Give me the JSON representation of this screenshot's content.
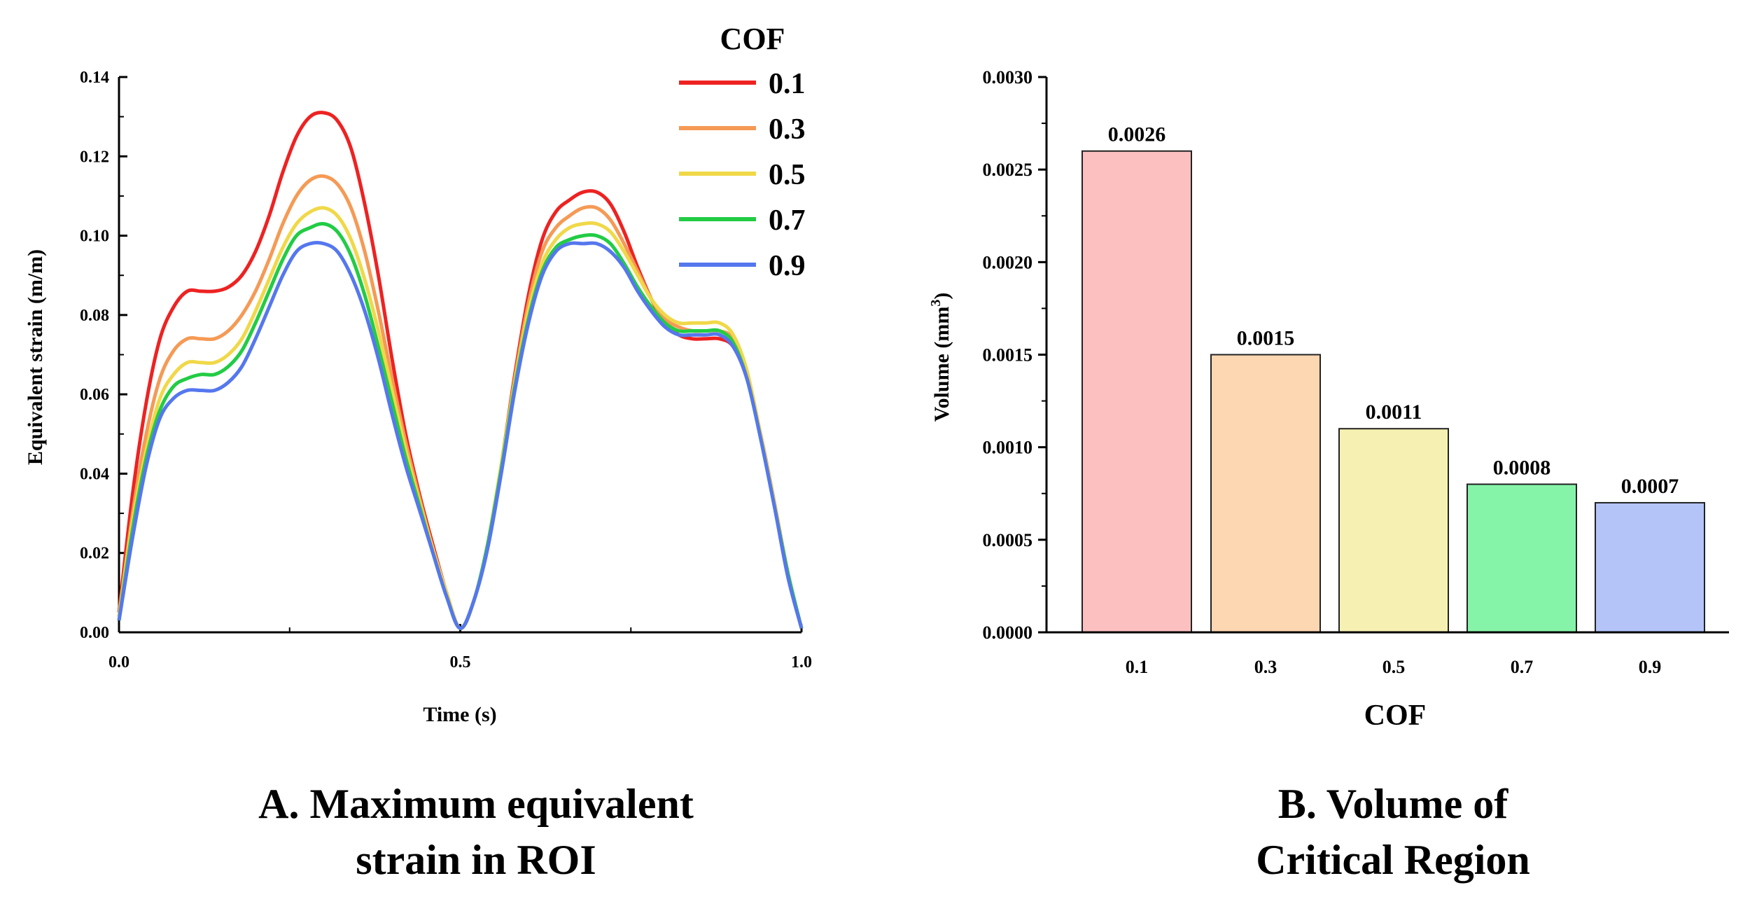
{
  "chart_data": [
    {
      "type": "line",
      "caption": [
        "A. Maximum equivalent",
        "strain in ROI"
      ],
      "xlabel": "Time (s)",
      "ylabel": "Equivalent strain (m/m)",
      "xlim": [
        0,
        1
      ],
      "ylim": [
        0,
        0.14
      ],
      "xticks": [
        "0.0",
        "0.5",
        "1.0"
      ],
      "yticks": [
        "0.00",
        "0.02",
        "0.04",
        "0.06",
        "0.08",
        "0.10",
        "0.12",
        "0.14"
      ],
      "legend_title": "COF",
      "legend_position": "top-right",
      "x": [
        0,
        0.02,
        0.04,
        0.06,
        0.08,
        0.1,
        0.12,
        0.14,
        0.16,
        0.18,
        0.2,
        0.22,
        0.24,
        0.26,
        0.28,
        0.3,
        0.32,
        0.34,
        0.36,
        0.38,
        0.4,
        0.42,
        0.44,
        0.46,
        0.48,
        0.5,
        0.52,
        0.54,
        0.56,
        0.58,
        0.6,
        0.62,
        0.64,
        0.66,
        0.68,
        0.7,
        0.72,
        0.74,
        0.76,
        0.78,
        0.8,
        0.82,
        0.84,
        0.86,
        0.88,
        0.9,
        0.92,
        0.94,
        0.96,
        0.98,
        1.0
      ],
      "series": [
        {
          "name": "0.1",
          "color": "#ee2222",
          "values": [
            0.005,
            0.035,
            0.058,
            0.074,
            0.082,
            0.086,
            0.086,
            0.086,
            0.087,
            0.09,
            0.096,
            0.105,
            0.116,
            0.125,
            0.13,
            0.131,
            0.129,
            0.122,
            0.108,
            0.09,
            0.069,
            0.05,
            0.035,
            0.022,
            0.01,
            0.001,
            0.008,
            0.022,
            0.042,
            0.065,
            0.085,
            0.099,
            0.106,
            0.109,
            0.111,
            0.111,
            0.108,
            0.101,
            0.092,
            0.084,
            0.078,
            0.075,
            0.074,
            0.074,
            0.074,
            0.072,
            0.064,
            0.05,
            0.033,
            0.015,
            0.001
          ]
        },
        {
          "name": "0.3",
          "color": "#f59a55",
          "values": [
            0.004,
            0.03,
            0.05,
            0.064,
            0.071,
            0.074,
            0.074,
            0.074,
            0.076,
            0.08,
            0.086,
            0.094,
            0.103,
            0.11,
            0.114,
            0.115,
            0.113,
            0.107,
            0.096,
            0.081,
            0.064,
            0.048,
            0.034,
            0.021,
            0.01,
            0.001,
            0.008,
            0.022,
            0.042,
            0.064,
            0.083,
            0.096,
            0.102,
            0.105,
            0.107,
            0.107,
            0.104,
            0.098,
            0.091,
            0.084,
            0.079,
            0.077,
            0.076,
            0.076,
            0.076,
            0.074,
            0.065,
            0.05,
            0.033,
            0.015,
            0.001
          ]
        },
        {
          "name": "0.5",
          "color": "#f0d848",
          "values": [
            0.004,
            0.028,
            0.046,
            0.059,
            0.065,
            0.068,
            0.068,
            0.068,
            0.07,
            0.074,
            0.081,
            0.089,
            0.097,
            0.103,
            0.106,
            0.107,
            0.105,
            0.099,
            0.089,
            0.076,
            0.061,
            0.046,
            0.033,
            0.021,
            0.01,
            0.001,
            0.008,
            0.022,
            0.042,
            0.063,
            0.081,
            0.093,
            0.099,
            0.102,
            0.103,
            0.103,
            0.101,
            0.096,
            0.09,
            0.084,
            0.08,
            0.078,
            0.078,
            0.078,
            0.078,
            0.075,
            0.066,
            0.05,
            0.033,
            0.015,
            0.001
          ]
        },
        {
          "name": "0.7",
          "color": "#22cc44",
          "values": [
            0.003,
            0.026,
            0.044,
            0.056,
            0.062,
            0.064,
            0.065,
            0.065,
            0.067,
            0.071,
            0.078,
            0.086,
            0.094,
            0.1,
            0.102,
            0.103,
            0.101,
            0.095,
            0.085,
            0.072,
            0.058,
            0.044,
            0.032,
            0.02,
            0.009,
            0.001,
            0.008,
            0.022,
            0.041,
            0.062,
            0.079,
            0.091,
            0.097,
            0.099,
            0.1,
            0.1,
            0.098,
            0.093,
            0.087,
            0.082,
            0.078,
            0.076,
            0.076,
            0.076,
            0.076,
            0.073,
            0.064,
            0.049,
            0.032,
            0.015,
            0.001
          ]
        },
        {
          "name": "0.9",
          "color": "#5577ee",
          "values": [
            0.003,
            0.024,
            0.042,
            0.054,
            0.059,
            0.061,
            0.061,
            0.061,
            0.063,
            0.067,
            0.074,
            0.082,
            0.09,
            0.096,
            0.098,
            0.098,
            0.096,
            0.09,
            0.081,
            0.069,
            0.055,
            0.042,
            0.031,
            0.02,
            0.009,
            0.001,
            0.008,
            0.021,
            0.04,
            0.061,
            0.078,
            0.09,
            0.096,
            0.098,
            0.098,
            0.098,
            0.096,
            0.092,
            0.086,
            0.081,
            0.077,
            0.075,
            0.075,
            0.075,
            0.075,
            0.072,
            0.064,
            0.049,
            0.032,
            0.014,
            0.001
          ]
        }
      ]
    },
    {
      "type": "bar",
      "caption": [
        "B. Volume of",
        "Critical Region"
      ],
      "xlabel": "COF",
      "ylabel": "Volume (mm",
      "ylabel_sup": "3",
      "ylabel_end": ")",
      "ylim": [
        0,
        0.003
      ],
      "yticks": [
        "0.0000",
        "0.0005",
        "0.0010",
        "0.0015",
        "0.0020",
        "0.0025",
        "0.0030"
      ],
      "categories": [
        "0.1",
        "0.3",
        "0.5",
        "0.7",
        "0.9"
      ],
      "values": [
        0.0026,
        0.0015,
        0.0011,
        0.0008,
        0.0007
      ],
      "labels": [
        "0.0026",
        "0.0015",
        "0.0011",
        "0.0008",
        "0.0007"
      ],
      "colors": [
        "#fcc0c0",
        "#fdd6b2",
        "#f6f1b2",
        "#86f4a8",
        "#b4c4f8"
      ]
    }
  ]
}
